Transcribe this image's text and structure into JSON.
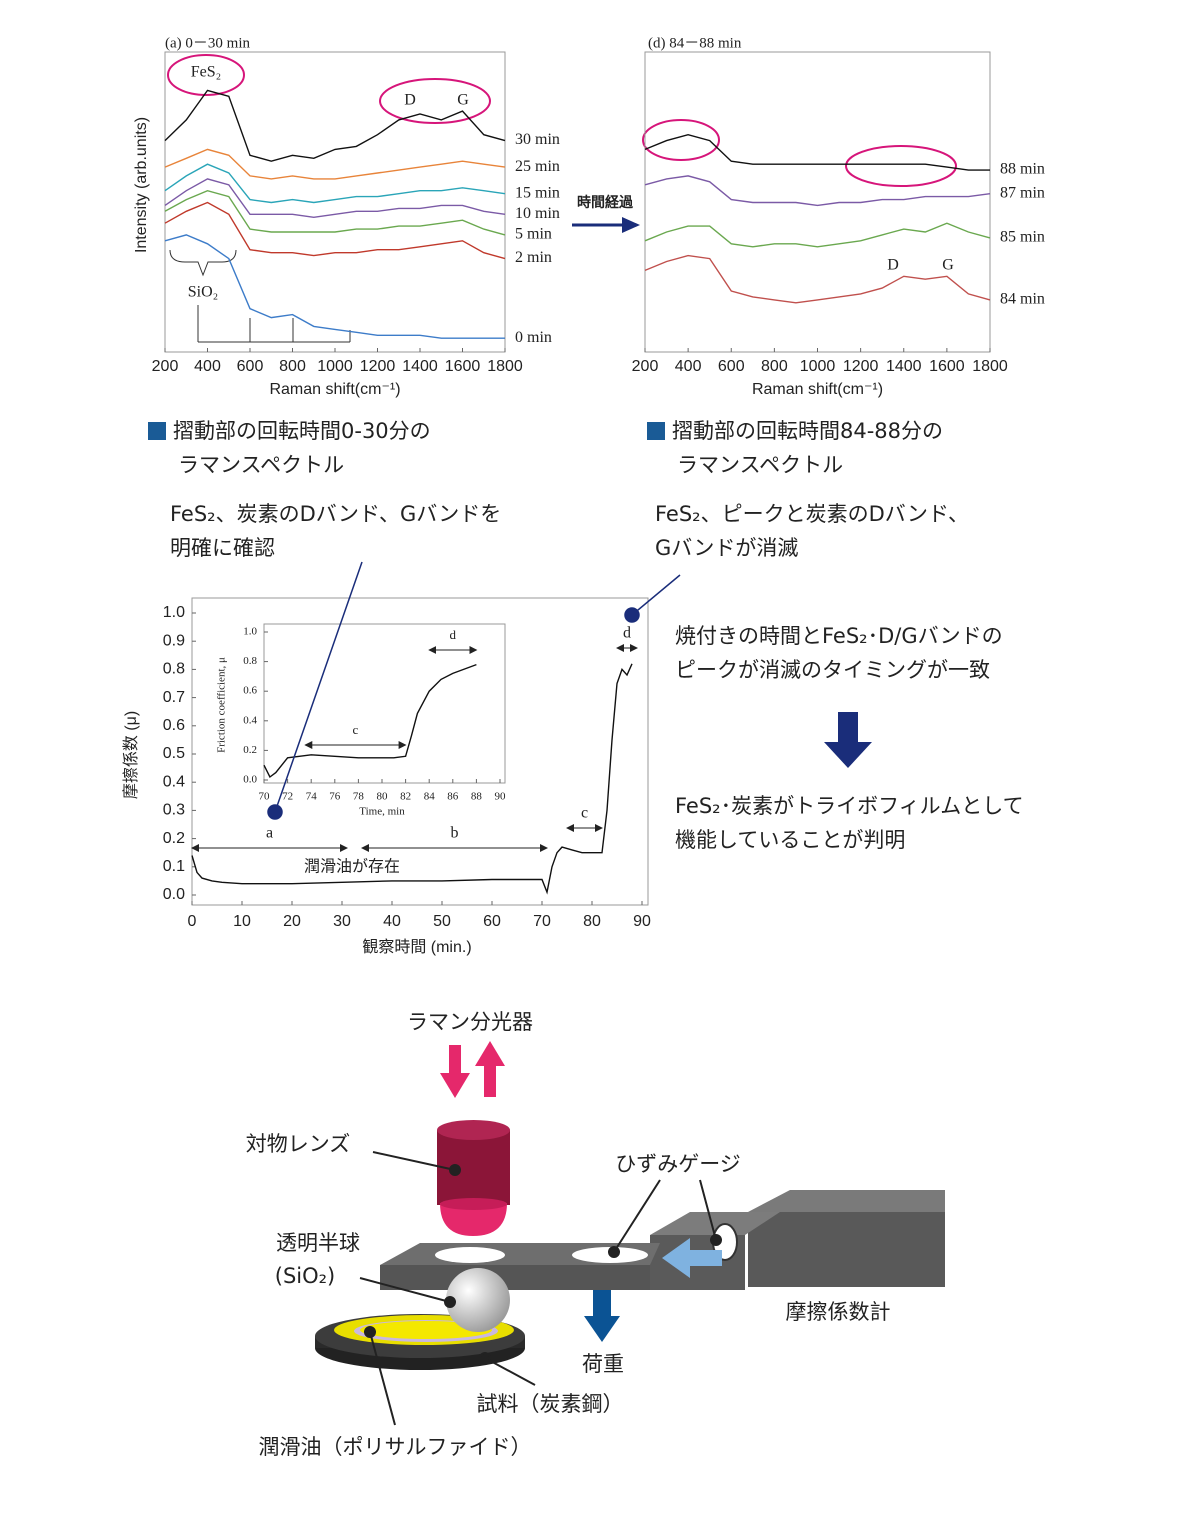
{
  "chart_data": [
    {
      "type": "line",
      "title": "(a) 0－30 min",
      "xlabel": "Raman shift(cm⁻¹)",
      "ylabel": "Intensity (arb.units)",
      "x": [
        200,
        300,
        400,
        500,
        600,
        700,
        800,
        900,
        1000,
        1100,
        1200,
        1300,
        1400,
        1500,
        1600,
        1700,
        1800
      ],
      "xlim": [
        200,
        1800
      ],
      "xticks": [
        200,
        400,
        600,
        800,
        1000,
        1200,
        1400,
        1600,
        1800
      ],
      "ylim": [
        0,
        10
      ],
      "series": [
        {
          "name": "30 min",
          "color": "#111111",
          "values": [
            7.1,
            7.8,
            8.8,
            8.6,
            6.6,
            6.4,
            6.6,
            6.5,
            6.8,
            6.9,
            7.3,
            7.8,
            8.0,
            7.8,
            8.1,
            7.3,
            7.1
          ]
        },
        {
          "name": "25 min",
          "color": "#e8843a",
          "values": [
            6.2,
            6.5,
            6.8,
            6.6,
            5.9,
            5.8,
            5.9,
            5.8,
            5.8,
            5.9,
            6.0,
            6.1,
            6.2,
            6.3,
            6.4,
            6.3,
            6.2
          ]
        },
        {
          "name": "15 min",
          "color": "#2aa5b8",
          "values": [
            5.4,
            5.9,
            6.3,
            6.0,
            5.1,
            5.0,
            5.1,
            5.0,
            5.1,
            5.2,
            5.2,
            5.3,
            5.4,
            5.4,
            5.5,
            5.4,
            5.3
          ]
        },
        {
          "name": "10 min",
          "color": "#7b5aa6",
          "values": [
            4.9,
            5.4,
            5.8,
            5.6,
            4.6,
            4.6,
            4.6,
            4.5,
            4.6,
            4.7,
            4.7,
            4.8,
            4.8,
            4.9,
            4.9,
            4.7,
            4.6
          ]
        },
        {
          "name": "5 min",
          "color": "#6aa84f",
          "values": [
            4.7,
            5.1,
            5.4,
            5.2,
            4.1,
            4.0,
            4.0,
            4.0,
            4.0,
            4.1,
            4.1,
            4.2,
            4.2,
            4.3,
            4.4,
            4.1,
            3.9
          ]
        },
        {
          "name": "2 min",
          "color": "#c0392b",
          "values": [
            4.3,
            4.7,
            5.0,
            4.6,
            3.4,
            3.3,
            3.3,
            3.2,
            3.3,
            3.3,
            3.4,
            3.4,
            3.5,
            3.6,
            3.7,
            3.3,
            3.1
          ]
        },
        {
          "name": "0 min",
          "color": "#3d7cc9",
          "values": [
            3.7,
            3.9,
            3.6,
            3.1,
            1.4,
            1.1,
            1.2,
            0.8,
            0.7,
            0.6,
            0.5,
            0.5,
            0.5,
            0.4,
            0.4,
            0.4,
            0.4
          ]
        }
      ],
      "annotations": [
        "FeS₂",
        "D",
        "G",
        "SiO₂"
      ]
    },
    {
      "type": "line",
      "title": "(d) 84－88 min",
      "xlabel": "Raman shift(cm⁻¹)",
      "x": [
        200,
        300,
        400,
        500,
        600,
        700,
        800,
        900,
        1000,
        1100,
        1200,
        1300,
        1400,
        1500,
        1600,
        1700,
        1800
      ],
      "xlim": [
        200,
        1800
      ],
      "xticks": [
        200,
        400,
        600,
        800,
        1000,
        1200,
        1400,
        1600,
        1800
      ],
      "ylim": [
        0,
        10
      ],
      "series": [
        {
          "name": "88 min",
          "color": "#111111",
          "values": [
            6.8,
            7.1,
            7.3,
            7.1,
            6.4,
            6.3,
            6.3,
            6.3,
            6.3,
            6.3,
            6.3,
            6.3,
            6.3,
            6.3,
            6.2,
            6.1,
            6.1
          ]
        },
        {
          "name": "87 min",
          "color": "#7b5aa6",
          "values": [
            5.6,
            5.8,
            5.9,
            5.7,
            5.1,
            5.0,
            5.0,
            5.0,
            4.9,
            5.0,
            5.0,
            5.1,
            5.1,
            5.2,
            5.2,
            5.2,
            5.3
          ]
        },
        {
          "name": "85 min",
          "color": "#6aa84f",
          "values": [
            3.7,
            4.0,
            4.2,
            4.2,
            3.6,
            3.5,
            3.6,
            3.6,
            3.5,
            3.6,
            3.7,
            3.9,
            4.1,
            4.0,
            4.3,
            4.0,
            3.8
          ]
        },
        {
          "name": "84 min",
          "color": "#c0504d",
          "values": [
            2.7,
            3.0,
            3.2,
            3.1,
            2.0,
            1.8,
            1.7,
            1.6,
            1.7,
            1.8,
            1.9,
            2.1,
            2.5,
            2.4,
            2.5,
            1.9,
            1.7
          ]
        }
      ],
      "annotations": [
        "D",
        "G"
      ]
    },
    {
      "type": "line",
      "xlabel": "観察時間 (min.)",
      "ylabel": "摩擦係数 (μ)",
      "x": [
        0,
        1,
        2,
        4,
        6,
        10,
        20,
        30,
        40,
        50,
        60,
        70,
        71,
        72,
        73,
        74,
        76,
        78,
        80,
        81,
        82,
        83,
        84,
        85,
        86,
        87,
        88
      ],
      "values": [
        0.14,
        0.08,
        0.06,
        0.05,
        0.045,
        0.04,
        0.04,
        0.045,
        0.05,
        0.05,
        0.055,
        0.055,
        0.01,
        0.1,
        0.15,
        0.17,
        0.16,
        0.15,
        0.15,
        0.15,
        0.15,
        0.3,
        0.55,
        0.75,
        0.8,
        0.78,
        0.82
      ],
      "color": "#111111",
      "xlim": [
        0,
        90
      ],
      "xticks": [
        0,
        10,
        20,
        30,
        40,
        50,
        60,
        70,
        80,
        90
      ],
      "ylim": [
        0,
        1
      ],
      "yticks": [
        {
          "value": 0,
          "label": "0.0"
        },
        0.1,
        0.2,
        0.3,
        0.4,
        0.5,
        0.6,
        0.7,
        0.8,
        0.9,
        {
          "value": 1,
          "label": "1.0"
        }
      ],
      "periods": [
        {
          "label": "a",
          "range": [
            0,
            31
          ]
        },
        {
          "label": "b",
          "range": [
            34,
            71
          ]
        },
        {
          "label": "c",
          "range": [
            75,
            82
          ]
        },
        {
          "label": "d",
          "range": [
            85,
            89
          ]
        }
      ],
      "annotations": [
        "潤滑油が存在"
      ]
    },
    {
      "type": "line",
      "xlabel": "Time, min",
      "ylabel": "Friction coefficient, μ",
      "x": [
        70,
        70.5,
        71,
        72,
        73,
        74,
        76,
        78,
        80,
        81,
        82,
        82.5,
        83,
        84,
        85,
        86,
        87,
        88
      ],
      "values": [
        0.1,
        0.02,
        0.05,
        0.15,
        0.16,
        0.17,
        0.16,
        0.15,
        0.15,
        0.15,
        0.16,
        0.3,
        0.45,
        0.6,
        0.68,
        0.72,
        0.75,
        0.78
      ],
      "color": "#111111",
      "xlim": [
        70,
        90
      ],
      "xticks": [
        70,
        72,
        74,
        76,
        78,
        80,
        82,
        84,
        86,
        88,
        90
      ],
      "ylim": [
        0,
        1
      ],
      "yticks": [
        {
          "value": 0,
          "label": "0.0"
        },
        0.2,
        0.4,
        0.6,
        0.8,
        {
          "value": 1,
          "label": "1.0"
        }
      ],
      "periods": [
        {
          "label": "c",
          "range": [
            73.5,
            82
          ]
        },
        {
          "label": "d",
          "range": [
            84,
            88
          ]
        }
      ]
    }
  ],
  "arrow_label": "時間経過",
  "captions": [
    [
      "摺動部の回転時間0-30分の",
      "ラマンスペクトル"
    ],
    [
      "摺動部の回転時間84-88分の",
      "ラマンスペクトル"
    ]
  ],
  "notes": [
    [
      "FeS₂、炭素のDバンド、Gバンドを",
      "明確に確認"
    ],
    [
      "FeS₂、ピークと炭素のDバンド、",
      "Gバンドが消滅"
    ]
  ],
  "conclusion": [
    [
      "焼付きの時間とFeS₂･D/Gバンドの",
      "ピークが消滅のタイミングが一致"
    ],
    [
      "FeS₂･炭素がトライボフィルムとして",
      "機能していることが判明"
    ]
  ],
  "diagram": {
    "labels": {
      "spectrometer": "ラマン分光器",
      "lens": "対物レンズ",
      "hemisphere": "透明半球",
      "hemisphere_material": "(SiO₂)",
      "strain_gauge": "ひずみゲージ",
      "friction_meter": "摩擦係数計",
      "load": "荷重",
      "sample": "試料（炭素鋼）",
      "lubricant": "潤滑油（ポリサルファイド）"
    }
  }
}
